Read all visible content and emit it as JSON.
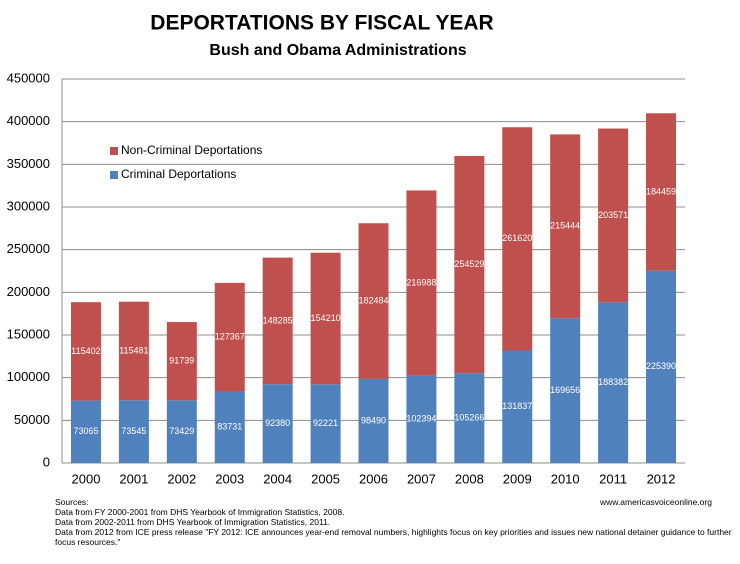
{
  "chart_data": {
    "type": "stacked-bar",
    "title": "DEPORTATIONS BY FISCAL YEAR",
    "subtitle": "Bush and Obama Administrations",
    "categories": [
      "2000",
      "2001",
      "2002",
      "2003",
      "2004",
      "2005",
      "2006",
      "2007",
      "2008",
      "2009",
      "2010",
      "2011",
      "2012"
    ],
    "series": [
      {
        "name": "Criminal Deportations",
        "color": "#4f81bd",
        "values": [
          73065,
          73545,
          73429,
          83731,
          92380,
          92221,
          98490,
          102394,
          105266,
          131837,
          169656,
          188382,
          225390
        ]
      },
      {
        "name": "Non-Criminal Deportations",
        "color": "#c0504d",
        "values": [
          115402,
          115481,
          91739,
          127367,
          148285,
          154210,
          182484,
          216988,
          254529,
          261620,
          215444,
          203571,
          184459
        ]
      }
    ],
    "ylim": [
      0,
      450000
    ],
    "yticks": [
      0,
      50000,
      100000,
      150000,
      200000,
      250000,
      300000,
      350000,
      400000,
      450000
    ],
    "grid": true,
    "legend": "upper-left",
    "sources": [
      "Sources:",
      "Data from FY 2000-2001 from DHS Yearbook of Immigration Statistics, 2008.",
      "Data from 2002-2011 from DHS Yearbook of Immigration Statistics, 2011.",
      "Data from 2012 from ICE press release \"FY 2012: ICE announces year-end removal numbers, highlights focus on key priorities and issues new national detainer guidance to further focus resources.\""
    ],
    "website": "www.americasvoiceonline.org"
  }
}
